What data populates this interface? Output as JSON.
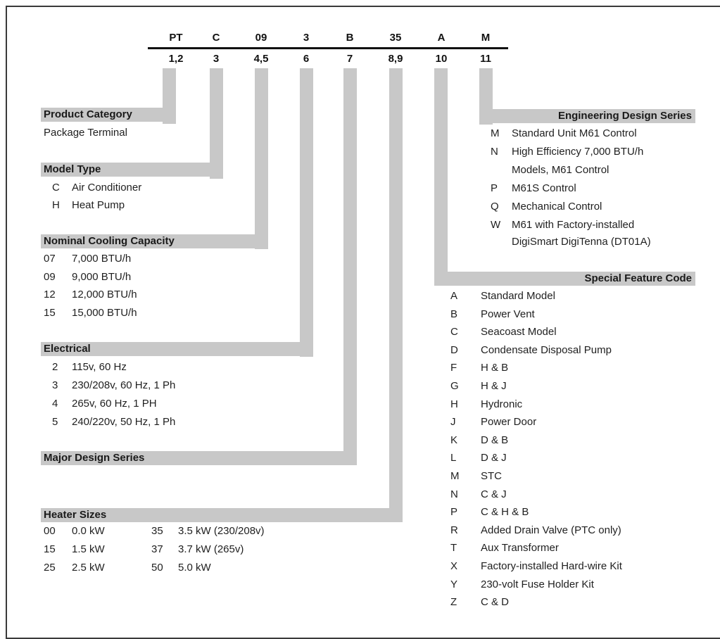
{
  "digits": {
    "codes": [
      "PT",
      "C",
      "09",
      "3",
      "B",
      "35",
      "A",
      "M"
    ],
    "positions": [
      "1,2",
      "3",
      "4,5",
      "6",
      "7",
      "8,9",
      "10",
      "11"
    ]
  },
  "product_category": {
    "title": "Product Category",
    "value": "Package Terminal"
  },
  "model_type": {
    "title": "Model Type",
    "items": [
      {
        "code": "C",
        "label": "Air Conditioner"
      },
      {
        "code": "H",
        "label": "Heat Pump"
      }
    ]
  },
  "nominal_cooling": {
    "title": "Nominal Cooling Capacity",
    "items": [
      {
        "code": "07",
        "label": "7,000 BTU/h"
      },
      {
        "code": "09",
        "label": "9,000 BTU/h"
      },
      {
        "code": "12",
        "label": "12,000 BTU/h"
      },
      {
        "code": "15",
        "label": "15,000 BTU/h"
      }
    ]
  },
  "electrical": {
    "title": "Electrical",
    "items": [
      {
        "code": "2",
        "label": "115v, 60 Hz"
      },
      {
        "code": "3",
        "label": "230/208v, 60 Hz, 1 Ph"
      },
      {
        "code": "4",
        "label": "265v, 60 Hz, 1 PH"
      },
      {
        "code": "5",
        "label": "240/220v, 50 Hz, 1 Ph"
      }
    ]
  },
  "major_design": {
    "title": "Major Design Series"
  },
  "heater_sizes": {
    "title": "Heater Sizes",
    "rows": [
      {
        "code1": "00",
        "label1": "0.0 kW",
        "code2": "35",
        "label2": "3.5 kW (230/208v)"
      },
      {
        "code1": "15",
        "label1": "1.5 kW",
        "code2": "37",
        "label2": "3.7 kW (265v)"
      },
      {
        "code1": "25",
        "label1": "2.5 kW",
        "code2": "50",
        "label2": "5.0 kW"
      }
    ]
  },
  "engineering": {
    "title": "Engineering Design Series",
    "items": [
      {
        "code": "M",
        "label": "Standard Unit M61 Control"
      },
      {
        "code": "N",
        "label": "High Efficiency 7,000 BTU/h"
      },
      {
        "code": "",
        "label": "Models, M61 Control"
      },
      {
        "code": "P",
        "label": "M61S Control"
      },
      {
        "code": "Q",
        "label": "Mechanical Control"
      },
      {
        "code": "W",
        "label": "M61 with Factory-installed"
      },
      {
        "code": "",
        "label": "DigiSmart DigiTenna (DT01A)"
      }
    ]
  },
  "special_feature": {
    "title": "Special Feature Code",
    "items": [
      {
        "code": "A",
        "label": "Standard Model"
      },
      {
        "code": "B",
        "label": "Power Vent"
      },
      {
        "code": "C",
        "label": "Seacoast Model"
      },
      {
        "code": "D",
        "label": "Condensate Disposal Pump"
      },
      {
        "code": "F",
        "label": "H & B"
      },
      {
        "code": "G",
        "label": "H & J"
      },
      {
        "code": "H",
        "label": "Hydronic"
      },
      {
        "code": "J",
        "label": "Power Door"
      },
      {
        "code": "K",
        "label": "D & B"
      },
      {
        "code": "L",
        "label": "D & J"
      },
      {
        "code": "M",
        "label": "STC"
      },
      {
        "code": "N",
        "label": "C & J"
      },
      {
        "code": "P",
        "label": "C & H & B"
      },
      {
        "code": "R",
        "label": "Added Drain Valve (PTC only)"
      },
      {
        "code": "T",
        "label": "Aux Transformer"
      },
      {
        "code": "X",
        "label": "Factory-installed Hard-wire Kit"
      },
      {
        "code": "Y",
        "label": "230-volt Fuse Holder Kit"
      },
      {
        "code": "Z",
        "label": "C & D"
      }
    ]
  }
}
